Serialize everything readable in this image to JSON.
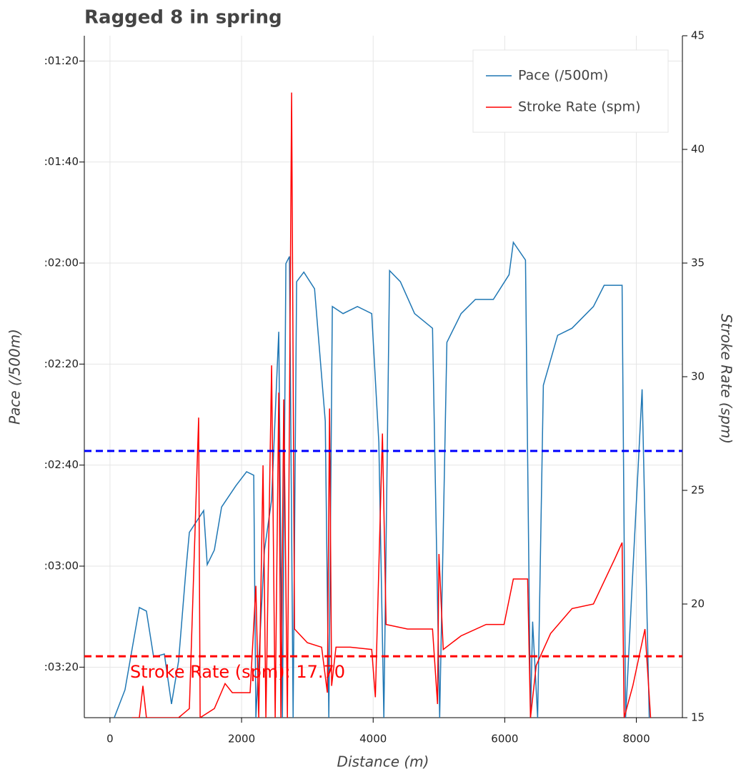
{
  "chart_data": {
    "type": "line",
    "title": "Ragged 8 in spring",
    "xlabel": "Distance (m)",
    "ylabel": "Pace (/500m)",
    "y2label": "Stroke Rate (spm)",
    "xlim": [
      -390,
      8700
    ],
    "xticks": [
      0,
      2000,
      4000,
      6000,
      8000
    ],
    "ylim": [
      210,
      75
    ],
    "yticks": [
      {
        "value": 80,
        "label": ":01:20"
      },
      {
        "value": 100,
        "label": ":01:40"
      },
      {
        "value": 120,
        "label": ":02:00"
      },
      {
        "value": 140,
        "label": ":02:20"
      },
      {
        "value": 160,
        "label": ":02:40"
      },
      {
        "value": 180,
        "label": ":03:00"
      },
      {
        "value": 200,
        "label": ":03:20"
      }
    ],
    "y2lim": [
      15,
      45
    ],
    "y2ticks": [
      15,
      20,
      25,
      30,
      35,
      40,
      45
    ],
    "grid": true,
    "legend": "upper right",
    "series": [
      {
        "name": "Pace (/500m)",
        "color": "#1f77b4",
        "axis": "y",
        "x": [
          65,
          228,
          446,
          554,
          663,
          826,
          935,
          1043,
          1152,
          1206,
          1424,
          1478,
          1587,
          1696,
          1913,
          2076,
          2185,
          2217,
          2348,
          2457,
          2565,
          2620,
          2674,
          2728,
          2783,
          2837,
          2946,
          3109,
          3272,
          3326,
          3380,
          3543,
          3761,
          3978,
          4087,
          4163,
          4250,
          4413,
          4630,
          4902,
          5011,
          5120,
          5337,
          5554,
          5826,
          6065,
          6131,
          6315,
          6391,
          6424,
          6500,
          6587,
          6804,
          7022,
          7348,
          7511,
          7783,
          7837,
          7946,
          8087,
          8196
        ],
        "values": [
          210,
          204.5,
          188.2,
          188.9,
          198,
          197.4,
          207.3,
          198.8,
          181.1,
          173.3,
          169,
          179.7,
          176.8,
          168.3,
          164.1,
          161.3,
          162,
          210,
          176.8,
          166.9,
          133.6,
          210,
          120.1,
          118.7,
          210,
          123.7,
          121.8,
          125.1,
          151.3,
          210,
          128.6,
          130,
          128.6,
          130,
          155.6,
          210,
          121.5,
          123.7,
          130,
          132.9,
          210,
          135.7,
          130,
          127.2,
          127.2,
          122.3,
          115.9,
          119.4,
          210,
          191,
          210,
          144.2,
          134.3,
          132.9,
          128.6,
          124.4,
          124.4,
          210,
          181.1,
          145,
          210
        ]
      },
      {
        "name": "Stroke Rate (spm)",
        "color": "#ff0000",
        "axis": "y2",
        "x": [
          337,
          446,
          500,
          554,
          1043,
          1206,
          1348,
          1370,
          1587,
          1750,
          1859,
          2130,
          2217,
          2261,
          2326,
          2370,
          2457,
          2511,
          2565,
          2598,
          2641,
          2696,
          2761,
          2805,
          3000,
          3217,
          3304,
          3337,
          3369,
          3435,
          3652,
          3978,
          4033,
          4141,
          4196,
          4522,
          4902,
          4978,
          5000,
          5065,
          5337,
          5717,
          5989,
          6131,
          6348,
          6391,
          6478,
          6696,
          7022,
          7348,
          7674,
          7783,
          7815,
          7946,
          8131,
          8217
        ],
        "values": [
          15,
          15,
          16.4,
          15,
          15,
          15.4,
          28.2,
          15,
          15.4,
          16.5,
          16.1,
          16.1,
          20.8,
          15,
          26.1,
          15,
          30.5,
          15,
          29.3,
          15,
          29,
          15,
          42.5,
          18.9,
          18.3,
          18.1,
          16.1,
          28.6,
          16.4,
          18.1,
          18.1,
          18,
          15.9,
          27.5,
          19.1,
          18.9,
          18.9,
          15.6,
          22.2,
          18,
          18.6,
          19.1,
          19.1,
          21.1,
          21.1,
          15,
          17.3,
          18.7,
          19.8,
          20,
          22,
          22.7,
          15,
          16.4,
          18.9,
          15
        ]
      }
    ],
    "hlines": [
      {
        "axis": "y",
        "value": 157.2,
        "color": "#0000ff"
      },
      {
        "axis": "y2",
        "value": 17.7,
        "color": "#ff0000"
      }
    ],
    "annotation": "Stroke Rate (spm):   17.70"
  }
}
